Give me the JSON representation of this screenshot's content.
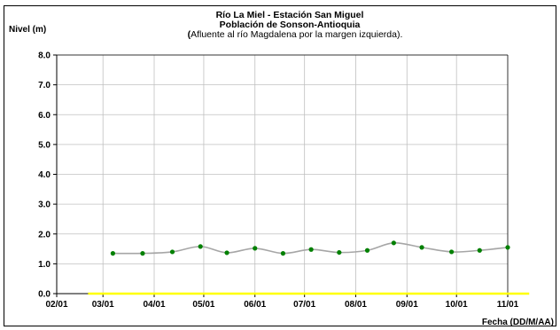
{
  "chart_data": {
    "type": "line",
    "title": "Río La Miel  - Estación San Miguel",
    "title_line2": "Población de Sonson-Antioquia",
    "subtitle_bold_paren": "(",
    "subtitle": "Afluente al río Magdalena por la margen izquierda).",
    "ylabel": "Nivel (m)",
    "xlabel": "Fecha (DD/M/AA)",
    "ylim": [
      0,
      8
    ],
    "yticks": [
      "0.0",
      "1.0",
      "2.0",
      "3.0",
      "4.0",
      "5.0",
      "6.0",
      "7.0",
      "8.0"
    ],
    "xticks": [
      "02/01",
      "03/01",
      "04/01",
      "05/01",
      "06/01",
      "07/01",
      "08/01",
      "09/01",
      "10/01",
      "11/01"
    ],
    "grid": true,
    "series": [
      {
        "x": [
          "03/07/01",
          "03/25/01",
          "04/12/01",
          "04/29/01",
          "05/15/01",
          "06/01/01",
          "06/18/01",
          "07/05/01",
          "07/22/01",
          "08/08/01",
          "08/24/01",
          "09/10/01",
          "09/28/01",
          "10/15/01",
          "11/01/01"
        ],
        "values": [
          1.35,
          1.35,
          1.4,
          1.58,
          1.37,
          1.52,
          1.35,
          1.48,
          1.38,
          1.45,
          1.7,
          1.55,
          1.4,
          1.45,
          1.55
        ],
        "line_color": "#a6a6a6",
        "marker_color": "#008000"
      }
    ],
    "baseline": {
      "start": "02/20/01",
      "end": "11/14/01",
      "value": 0,
      "color": "#ffff00"
    }
  }
}
